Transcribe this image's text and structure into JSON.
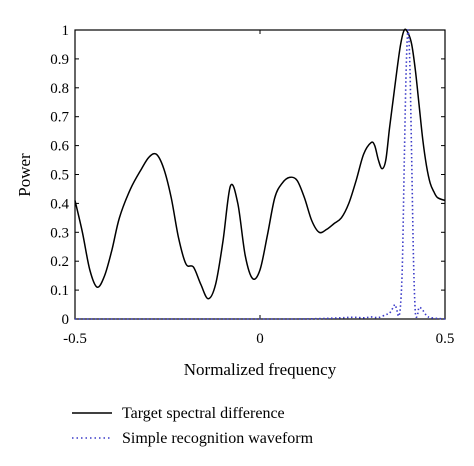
{
  "chart_data": {
    "type": "line",
    "xlabel": "Normalized frequency",
    "ylabel": "Power",
    "xlim": [
      -0.5,
      0.5
    ],
    "ylim": [
      0,
      1
    ],
    "x_ticks": [
      -0.5,
      0,
      0.5
    ],
    "x_tick_labels": [
      "-0.5",
      "0",
      "0.5"
    ],
    "y_ticks": [
      0,
      0.1,
      0.2,
      0.3,
      0.4,
      0.5,
      0.6,
      0.7,
      0.8,
      0.9,
      1
    ],
    "y_tick_labels": [
      "0",
      "0.1",
      "0.2",
      "0.3",
      "0.4",
      "0.5",
      "0.6",
      "0.7",
      "0.8",
      "0.9",
      "1"
    ],
    "grid": false,
    "legend_position": "bottom",
    "series": [
      {
        "name": "Target spectral difference",
        "style": "solid",
        "color": "#000000",
        "x": [
          -0.5,
          -0.48,
          -0.46,
          -0.44,
          -0.42,
          -0.4,
          -0.38,
          -0.35,
          -0.32,
          -0.3,
          -0.28,
          -0.26,
          -0.24,
          -0.22,
          -0.2,
          -0.18,
          -0.16,
          -0.14,
          -0.12,
          -0.1,
          -0.08,
          -0.06,
          -0.04,
          -0.02,
          0.0,
          0.02,
          0.04,
          0.06,
          0.08,
          0.1,
          0.12,
          0.14,
          0.16,
          0.18,
          0.2,
          0.22,
          0.24,
          0.26,
          0.28,
          0.3,
          0.31,
          0.32,
          0.33,
          0.34,
          0.35,
          0.36,
          0.37,
          0.38,
          0.39,
          0.4,
          0.41,
          0.42,
          0.43,
          0.44,
          0.45,
          0.46,
          0.47,
          0.48,
          0.5
        ],
        "y": [
          0.41,
          0.3,
          0.17,
          0.11,
          0.15,
          0.24,
          0.35,
          0.45,
          0.52,
          0.56,
          0.57,
          0.52,
          0.42,
          0.28,
          0.19,
          0.18,
          0.12,
          0.07,
          0.12,
          0.27,
          0.46,
          0.4,
          0.22,
          0.14,
          0.17,
          0.29,
          0.42,
          0.47,
          0.49,
          0.48,
          0.42,
          0.34,
          0.3,
          0.31,
          0.33,
          0.35,
          0.4,
          0.48,
          0.57,
          0.61,
          0.6,
          0.55,
          0.52,
          0.55,
          0.66,
          0.76,
          0.86,
          0.95,
          1.0,
          0.99,
          0.95,
          0.86,
          0.74,
          0.62,
          0.53,
          0.47,
          0.44,
          0.42,
          0.41
        ]
      },
      {
        "name": "Simple recognition waveform",
        "style": "dotted",
        "color": "#3a3ac8",
        "x": [
          -0.5,
          -0.3,
          -0.1,
          0.1,
          0.2,
          0.25,
          0.28,
          0.3,
          0.32,
          0.34,
          0.35,
          0.36,
          0.365,
          0.37,
          0.375,
          0.38,
          0.385,
          0.39,
          0.395,
          0.4,
          0.405,
          0.41,
          0.415,
          0.42,
          0.425,
          0.43,
          0.44,
          0.45,
          0.46,
          0.48,
          0.5
        ],
        "y": [
          0.0,
          0.0,
          0.0,
          0.0,
          0.003,
          0.006,
          0.004,
          0.007,
          0.005,
          0.015,
          0.02,
          0.04,
          0.05,
          0.03,
          0.01,
          0.05,
          0.2,
          0.55,
          0.86,
          1.0,
          0.88,
          0.55,
          0.2,
          0.02,
          0.01,
          0.04,
          0.03,
          0.012,
          0.005,
          0.002,
          0.0
        ]
      }
    ]
  }
}
